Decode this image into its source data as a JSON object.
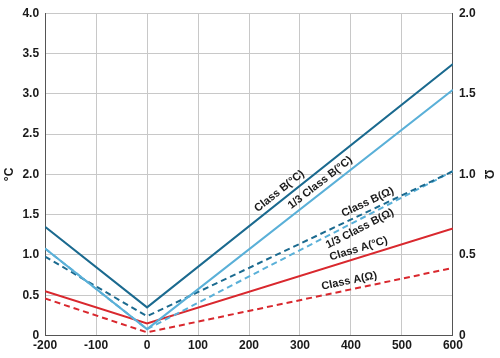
{
  "chart_data": {
    "type": "line",
    "x": [
      -200,
      0,
      600
    ],
    "xlim": [
      -200,
      600
    ],
    "xticks": [
      -200,
      -100,
      0,
      100,
      200,
      300,
      400,
      500,
      600
    ],
    "ylim": [
      0,
      4
    ],
    "yticks": [
      0,
      0.5,
      {
        "value": 1,
        "label": "1.0"
      },
      1.5,
      {
        "value": 2,
        "label": "2.0"
      },
      2.5,
      {
        "value": 3,
        "label": "3.0"
      },
      3.5,
      {
        "value": 4,
        "label": "4.0"
      }
    ],
    "y_label": "°C",
    "y2lim": [
      0,
      2
    ],
    "y2ticks": [
      0,
      0.5,
      {
        "value": 1,
        "label": "1.0"
      },
      1.5,
      {
        "value": 2,
        "label": "2.0"
      }
    ],
    "y2_label": "Ω",
    "grid": true,
    "series": [
      {
        "name": "Class B(°C)",
        "color": "#1b6a8f",
        "line_style": "solid",
        "values": [
          1.35,
          0.35,
          3.37
        ]
      },
      {
        "name": "1/3 Class B(°C)",
        "color": "#5ab0d8",
        "line_style": "solid",
        "values": [
          1.08,
          0.08,
          3.05
        ]
      },
      {
        "name": "Class B(Ω)",
        "color": "#1b6a8f",
        "line_style": "dashed",
        "axis": "y2",
        "values": [
          0.49,
          0.12,
          1.02
        ]
      },
      {
        "name": "1/3 Class B(Ω)",
        "color": "#5ab0d8",
        "line_style": "dashed",
        "axis": "y2",
        "values": [
          0.54,
          0.04,
          1.02
        ]
      },
      {
        "name": "Class A(°C)",
        "color": "#d9282e",
        "line_style": "solid",
        "values": [
          0.55,
          0.15,
          1.33
        ]
      },
      {
        "name": "Class A(Ω)",
        "color": "#d9282e",
        "line_style": "dashed",
        "axis": "y2",
        "values": [
          0.23,
          0.02,
          0.42
        ]
      }
    ]
  }
}
